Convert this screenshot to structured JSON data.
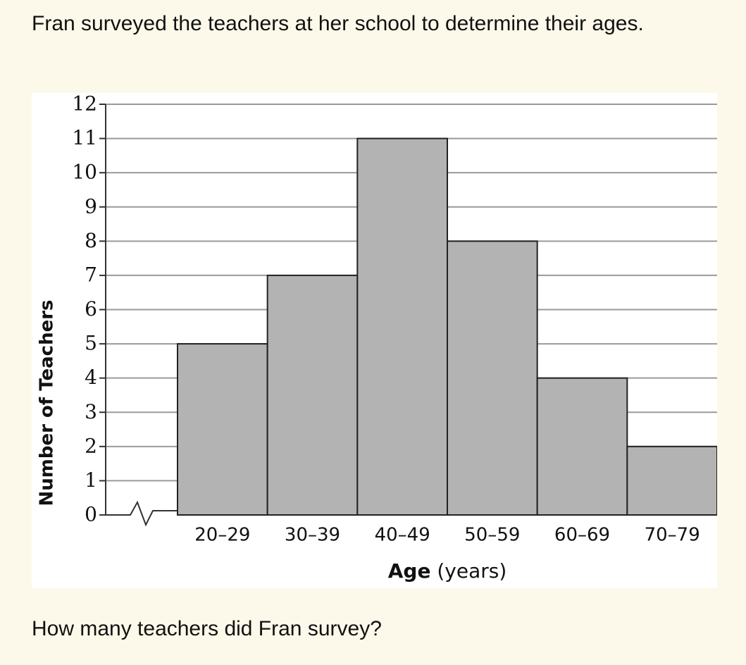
{
  "intro": "Fran surveyed the teachers at her school to determine their ages.",
  "chart_data": {
    "type": "bar",
    "categories": [
      "20–29",
      "30–39",
      "40–49",
      "50–59",
      "60–69",
      "70–79"
    ],
    "values": [
      5,
      7,
      11,
      8,
      4,
      2
    ],
    "color": "#b3b3b3",
    "ylabel": "Number of Teachers",
    "xlabel": "Age",
    "xlabel_unit": "(years)",
    "ylim": [
      0,
      12
    ],
    "yticks": [
      0,
      1,
      2,
      3,
      4,
      5,
      6,
      7,
      8,
      9,
      10,
      11,
      12
    ],
    "grid": true
  },
  "question": "How many teachers did Fran survey?"
}
